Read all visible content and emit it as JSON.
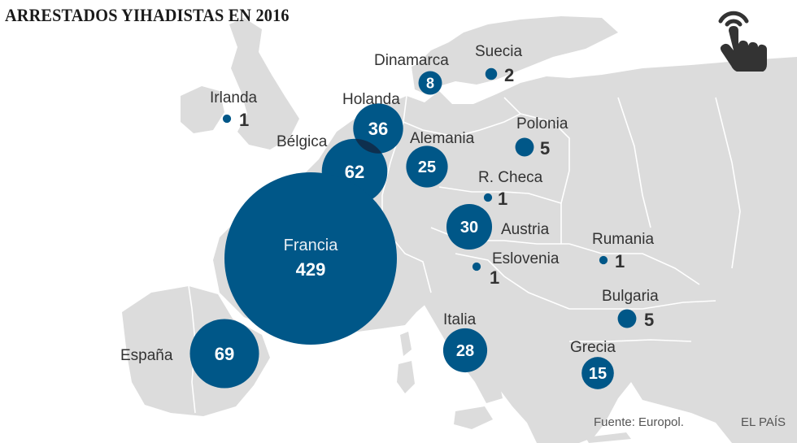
{
  "title": "ARRESTADOS YIHADISTAS EN 2016",
  "colors": {
    "land": "#dcdcdc",
    "land_dark": "#cfcfcf",
    "border": "#ffffff",
    "sea": "#ffffff",
    "bubble": "#005788",
    "bubble_overlap": "#0e2f4e",
    "label": "#333333",
    "value_small": "#333333"
  },
  "icon": "touch-hand-icon",
  "countries": [
    {
      "key": "irlanda",
      "name": "Irlanda",
      "arrests": 1
    },
    {
      "key": "dinamarca",
      "name": "Dinamarca",
      "arrests": 8
    },
    {
      "key": "suecia",
      "name": "Suecia",
      "arrests": 2
    },
    {
      "key": "holanda",
      "name": "Holanda",
      "arrests": 36
    },
    {
      "key": "belgica",
      "name": "Bélgica",
      "arrests": 62
    },
    {
      "key": "alemania",
      "name": "Alemania",
      "arrests": 25
    },
    {
      "key": "polonia",
      "name": "Polonia",
      "arrests": 5
    },
    {
      "key": "rcheca",
      "name": "R. Checa",
      "arrests": 1
    },
    {
      "key": "austria",
      "name": "Austria",
      "arrests": 30
    },
    {
      "key": "francia",
      "name": "Francia",
      "arrests": 429
    },
    {
      "key": "eslovenia",
      "name": "Eslovenia",
      "arrests": 1
    },
    {
      "key": "rumania",
      "name": "Rumania",
      "arrests": 1
    },
    {
      "key": "bulgaria",
      "name": "Bulgaria",
      "arrests": 5
    },
    {
      "key": "espana",
      "name": "España",
      "arrests": 69
    },
    {
      "key": "italia",
      "name": "Italia",
      "arrests": 28
    },
    {
      "key": "grecia",
      "name": "Grecia",
      "arrests": 15
    }
  ],
  "source": "Fuente: Europol.",
  "credit": "EL PAÍS"
}
